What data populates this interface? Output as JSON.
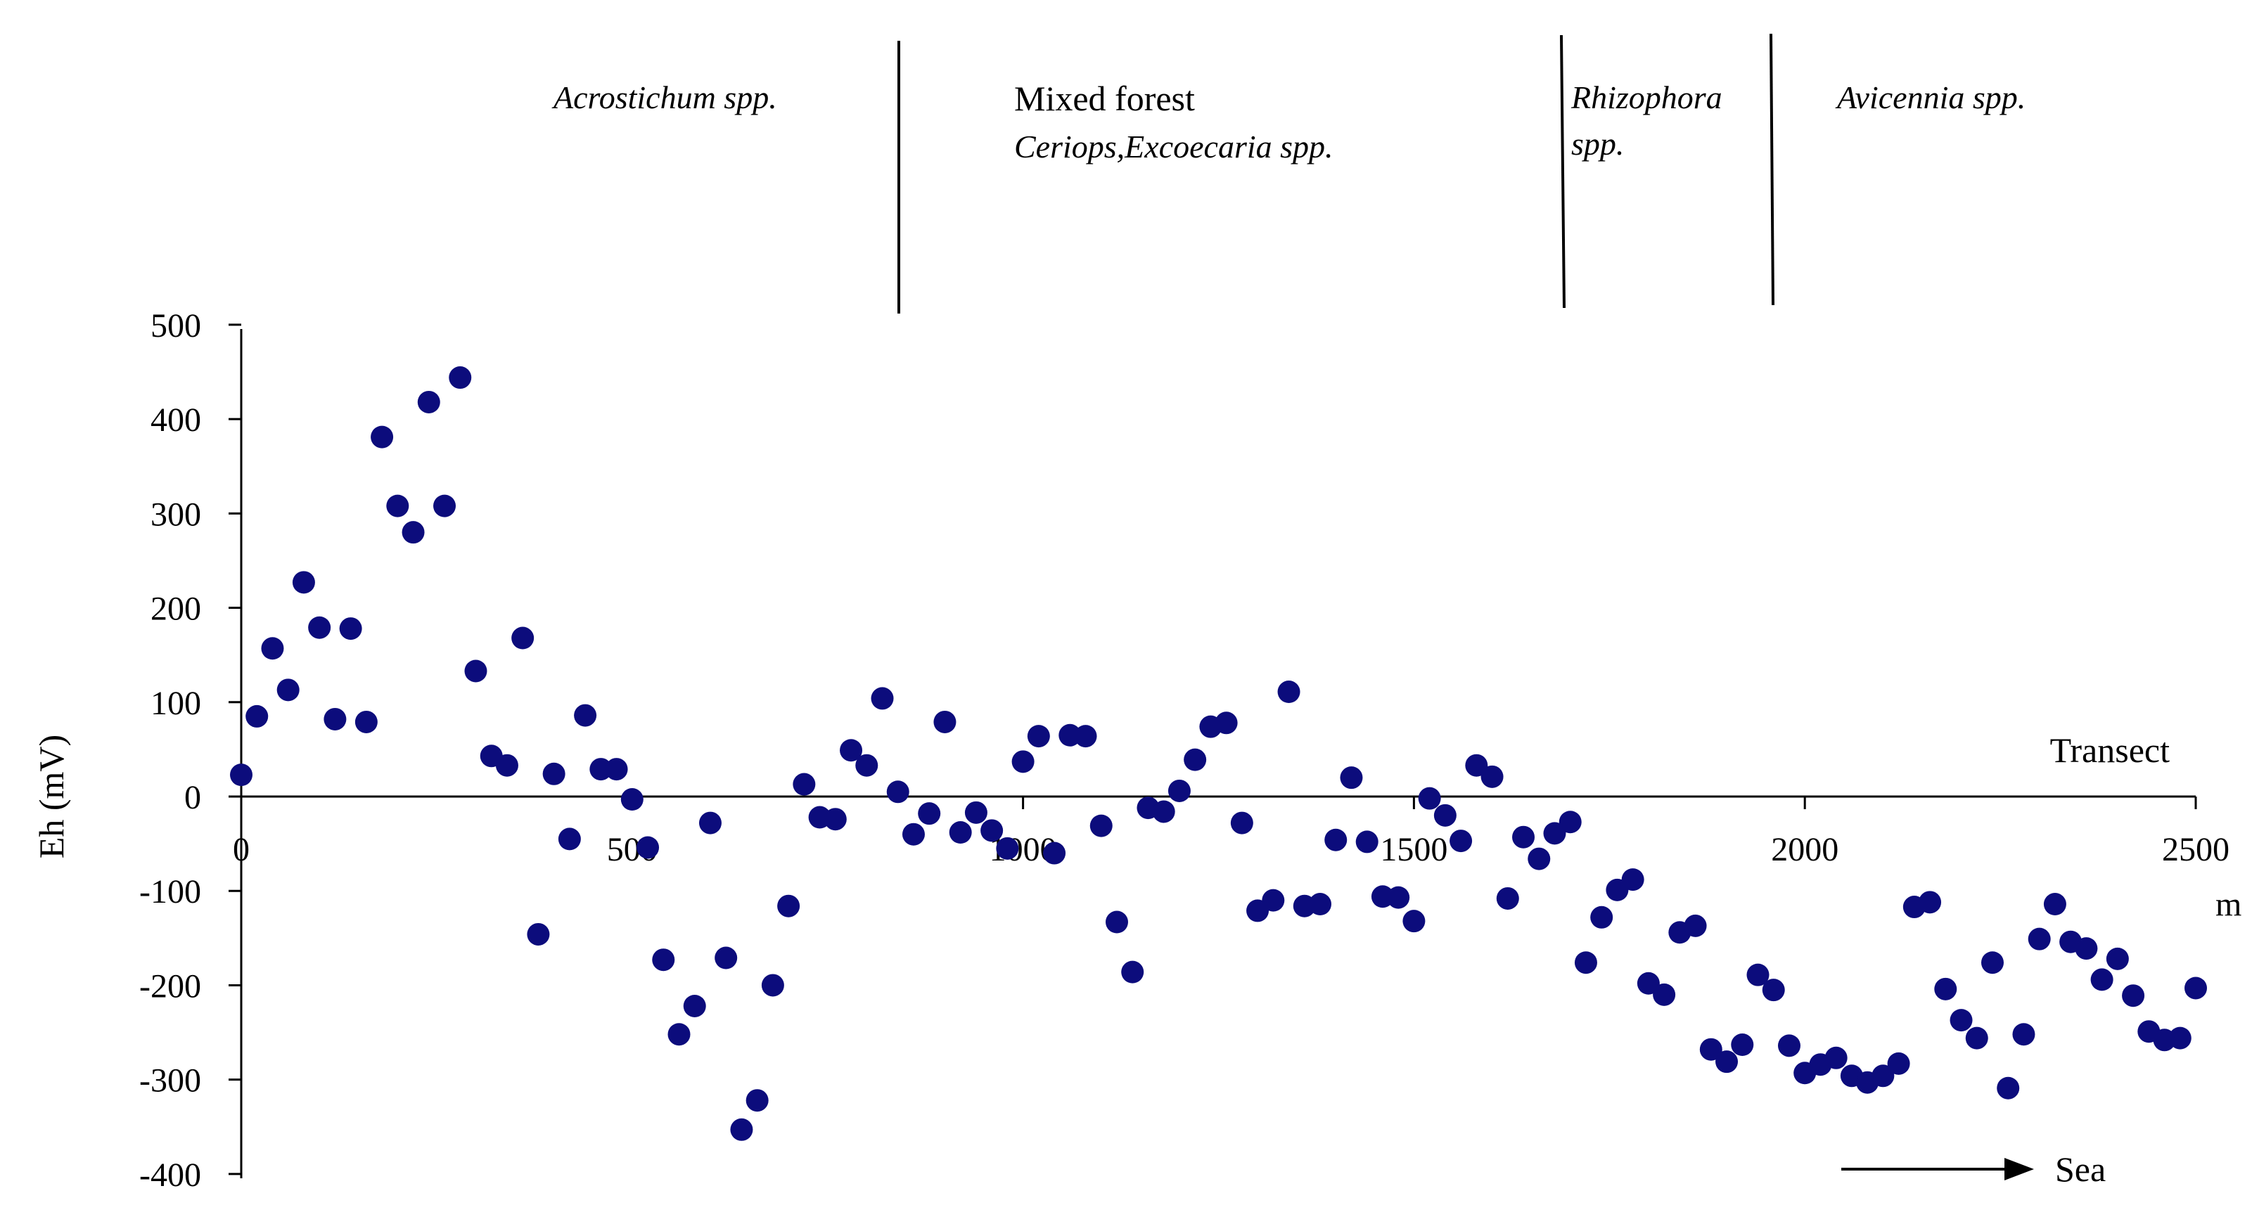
{
  "chart_data": {
    "type": "scatter",
    "title": "",
    "xlabel": "Transect",
    "x_unit": "m",
    "ylabel": "Eh (mV)",
    "xlim": [
      0,
      2500
    ],
    "ylim": [
      -400,
      500
    ],
    "x_ticks": [
      0,
      500,
      1000,
      1500,
      2000,
      2500
    ],
    "y_ticks": [
      500,
      400,
      300,
      200,
      100,
      0,
      -100,
      -200,
      -300,
      -400
    ],
    "grid": false,
    "marker_color": "#0c0c7c",
    "zones": [
      {
        "label": "Acrostichum spp.",
        "style": "italic",
        "x_end": 840
      },
      {
        "label": "Mixed forest",
        "sublabel": "Ceriops,Excoecaria spp.",
        "style": "normal",
        "x_end": 1690
      },
      {
        "label": "Rhizophora",
        "sublabel": "spp.",
        "style": "italic",
        "x_end": 1960
      },
      {
        "label": "Avicennia spp.",
        "style": "italic"
      }
    ],
    "direction_label": "Sea",
    "points": [
      [
        0,
        23
      ],
      [
        20,
        85
      ],
      [
        40,
        157
      ],
      [
        60,
        113
      ],
      [
        80,
        227
      ],
      [
        100,
        179
      ],
      [
        120,
        82
      ],
      [
        140,
        178
      ],
      [
        160,
        79
      ],
      [
        180,
        381
      ],
      [
        200,
        308
      ],
      [
        220,
        280
      ],
      [
        240,
        418
      ],
      [
        260,
        308
      ],
      [
        280,
        444
      ],
      [
        300,
        133
      ],
      [
        320,
        43
      ],
      [
        340,
        33
      ],
      [
        360,
        168
      ],
      [
        380,
        -146
      ],
      [
        400,
        24
      ],
      [
        420,
        -45
      ],
      [
        440,
        86
      ],
      [
        460,
        29
      ],
      [
        480,
        29
      ],
      [
        500,
        -3
      ],
      [
        520,
        -54
      ],
      [
        540,
        -173
      ],
      [
        560,
        -252
      ],
      [
        580,
        -222
      ],
      [
        600,
        -28
      ],
      [
        620,
        -171
      ],
      [
        640,
        -353
      ],
      [
        660,
        -322
      ],
      [
        680,
        -200
      ],
      [
        700,
        -116
      ],
      [
        720,
        13
      ],
      [
        740,
        -22
      ],
      [
        760,
        -24
      ],
      [
        780,
        49
      ],
      [
        800,
        33
      ],
      [
        820,
        104
      ],
      [
        840,
        5
      ],
      [
        860,
        -40
      ],
      [
        880,
        -18
      ],
      [
        900,
        79
      ],
      [
        920,
        -38
      ],
      [
        940,
        -17
      ],
      [
        960,
        -36
      ],
      [
        980,
        -55
      ],
      [
        1000,
        37
      ],
      [
        1020,
        64
      ],
      [
        1040,
        -60
      ],
      [
        1060,
        65
      ],
      [
        1080,
        64
      ],
      [
        1100,
        -31
      ],
      [
        1120,
        -133
      ],
      [
        1140,
        -186
      ],
      [
        1160,
        -12
      ],
      [
        1180,
        -16
      ],
      [
        1200,
        6
      ],
      [
        1220,
        39
      ],
      [
        1240,
        74
      ],
      [
        1260,
        78
      ],
      [
        1280,
        -28
      ],
      [
        1300,
        -121
      ],
      [
        1320,
        -110
      ],
      [
        1340,
        111
      ],
      [
        1360,
        -116
      ],
      [
        1380,
        -114
      ],
      [
        1400,
        -46
      ],
      [
        1420,
        20
      ],
      [
        1440,
        -48
      ],
      [
        1460,
        -106
      ],
      [
        1480,
        -107
      ],
      [
        1500,
        -132
      ],
      [
        1520,
        -2
      ],
      [
        1540,
        -20
      ],
      [
        1560,
        -47
      ],
      [
        1580,
        33
      ],
      [
        1600,
        21
      ],
      [
        1620,
        -108
      ],
      [
        1640,
        -43
      ],
      [
        1660,
        -66
      ],
      [
        1680,
        -39
      ],
      [
        1700,
        -27
      ],
      [
        1720,
        -176
      ],
      [
        1740,
        -128
      ],
      [
        1760,
        -99
      ],
      [
        1780,
        -88
      ],
      [
        1800,
        -198
      ],
      [
        1820,
        -210
      ],
      [
        1840,
        -144
      ],
      [
        1860,
        -137
      ],
      [
        1880,
        -268
      ],
      [
        1900,
        -281
      ],
      [
        1920,
        -263
      ],
      [
        1940,
        -189
      ],
      [
        1960,
        -205
      ],
      [
        1980,
        -264
      ],
      [
        2000,
        -293
      ],
      [
        2020,
        -284
      ],
      [
        2040,
        -277
      ],
      [
        2060,
        -296
      ],
      [
        2080,
        -303
      ],
      [
        2100,
        -296
      ],
      [
        2120,
        -283
      ],
      [
        2140,
        -117
      ],
      [
        2160,
        -112
      ],
      [
        2180,
        -204
      ],
      [
        2200,
        -237
      ],
      [
        2220,
        -256
      ],
      [
        2240,
        -176
      ],
      [
        2260,
        -309
      ],
      [
        2280,
        -252
      ],
      [
        2300,
        -151
      ],
      [
        2320,
        -114
      ],
      [
        2340,
        -154
      ],
      [
        2360,
        -161
      ],
      [
        2380,
        -194
      ],
      [
        2400,
        -172
      ],
      [
        2420,
        -211
      ],
      [
        2440,
        -249
      ],
      [
        2460,
        -258
      ],
      [
        2480,
        -256
      ],
      [
        2500,
        -203
      ]
    ]
  }
}
